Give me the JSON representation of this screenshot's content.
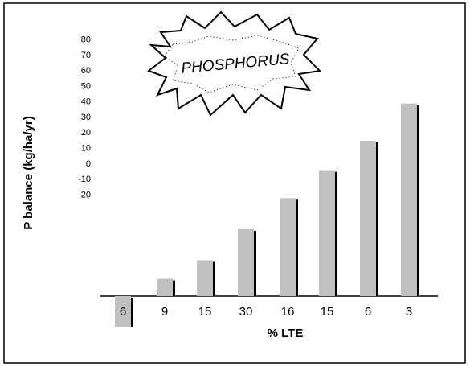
{
  "chart_data": {
    "type": "bar",
    "y_label": "P balance  (kg/ha/yr)",
    "x_label": "% LTE",
    "annotation": "PHOSPHORUS",
    "categories": [
      "6",
      "9",
      "15",
      "30",
      "16",
      "15",
      "6",
      "3"
    ],
    "values": [
      -105,
      -74,
      -62,
      -42,
      -22,
      -4,
      15,
      39
    ],
    "color": "#c0c0c0",
    "shadow_color": "#000000",
    "ylim": [
      -110,
      85
    ],
    "yticks": [
      80,
      70,
      60,
      50,
      40,
      30,
      20,
      10,
      0,
      -10,
      -20
    ]
  }
}
